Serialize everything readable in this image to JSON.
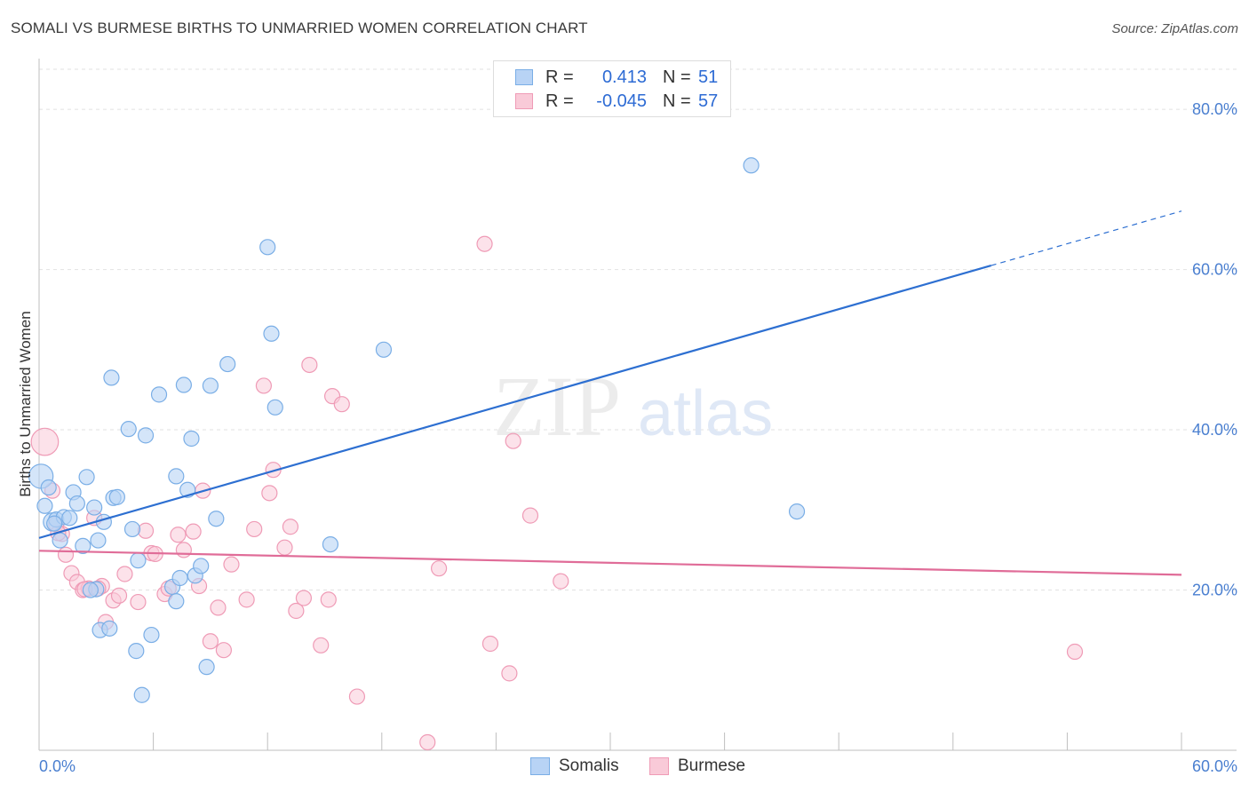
{
  "title": "SOMALI VS BURMESE BIRTHS TO UNMARRIED WOMEN CORRELATION CHART",
  "source": "Source: ZipAtlas.com",
  "watermark": {
    "zip": "ZIP",
    "atlas": "atlas"
  },
  "colors": {
    "somali_fill": "#b8d3f5",
    "somali_stroke": "#7aaee6",
    "somali_line": "#2d6fd1",
    "burmese_fill": "#f9cad8",
    "burmese_stroke": "#ef9bb6",
    "burmese_line": "#e06c98",
    "tick_text": "#4a7fd0"
  },
  "legend": {
    "rows": [
      {
        "r_label": "R =",
        "r_value": "0.413",
        "n_label": "N =",
        "n_value": "51"
      },
      {
        "r_label": "R =",
        "r_value": "-0.045",
        "n_label": "N =",
        "n_value": "57"
      }
    ]
  },
  "bottom_legend": {
    "somali": "Somalis",
    "burmese": "Burmese"
  },
  "chart_data": {
    "type": "scatter",
    "title": "SOMALI VS BURMESE BIRTHS TO UNMARRIED WOMEN CORRELATION CHART",
    "ylabel": "Births to Unmarried Women",
    "xlabel": "",
    "xlim": [
      0,
      60
    ],
    "ylim": [
      0,
      85
    ],
    "x_tick_labels": [
      "0.0%",
      "60.0%"
    ],
    "y_ticks": [
      20,
      40,
      60,
      80
    ],
    "y_tick_labels": [
      "20.0%",
      "40.0%",
      "60.0%",
      "80.0%"
    ],
    "grid": true,
    "series": [
      {
        "name": "Somalis",
        "trend": {
          "x0": 0,
          "y0": 26.5,
          "x1": 50,
          "y1": 60.5,
          "dashed_to_x": 60,
          "dashed_to_y": 67.3
        },
        "points": [
          [
            0.1,
            34.2,
            1.6
          ],
          [
            0.3,
            30.5,
            1
          ],
          [
            0.5,
            32.8,
            1
          ],
          [
            0.7,
            28.5,
            1.2
          ],
          [
            0.9,
            28.8,
            1
          ],
          [
            1.1,
            26.2,
            1
          ],
          [
            1.3,
            29.1,
            1
          ],
          [
            1.6,
            29.0,
            1
          ],
          [
            1.8,
            32.2,
            1
          ],
          [
            2.0,
            30.8,
            1
          ],
          [
            2.3,
            25.5,
            1
          ],
          [
            2.5,
            34.1,
            1
          ],
          [
            2.9,
            30.3,
            1
          ],
          [
            3.1,
            26.2,
            1
          ],
          [
            3.4,
            28.5,
            1
          ],
          [
            3.8,
            46.5,
            1
          ],
          [
            3.9,
            31.5,
            1
          ],
          [
            4.1,
            31.6,
            1
          ],
          [
            4.7,
            40.1,
            1
          ],
          [
            4.9,
            27.6,
            1
          ],
          [
            5.2,
            23.7,
            1
          ],
          [
            5.1,
            12.4,
            1
          ],
          [
            5.4,
            6.9,
            1
          ],
          [
            5.6,
            39.3,
            1
          ],
          [
            5.9,
            14.4,
            1
          ],
          [
            6.3,
            44.4,
            1
          ],
          [
            7.0,
            20.4,
            1
          ],
          [
            7.2,
            18.6,
            1
          ],
          [
            7.2,
            34.2,
            1
          ],
          [
            7.4,
            21.5,
            1
          ],
          [
            7.6,
            45.6,
            1
          ],
          [
            7.8,
            32.5,
            1
          ],
          [
            8.0,
            38.9,
            1
          ],
          [
            8.2,
            21.8,
            1
          ],
          [
            8.5,
            23.0,
            1
          ],
          [
            8.8,
            10.4,
            1
          ],
          [
            9.0,
            45.5,
            1
          ],
          [
            9.3,
            28.9,
            1
          ],
          [
            9.9,
            48.2,
            1
          ],
          [
            3.0,
            20.1,
            1
          ],
          [
            3.2,
            15.0,
            1
          ],
          [
            3.7,
            15.2,
            1
          ],
          [
            12.0,
            62.8,
            1
          ],
          [
            12.2,
            52.0,
            1
          ],
          [
            12.4,
            42.8,
            1
          ],
          [
            15.3,
            25.7,
            1
          ],
          [
            18.1,
            50.0,
            1
          ],
          [
            37.4,
            73.0,
            1
          ],
          [
            39.8,
            29.8,
            1
          ],
          [
            2.7,
            20.0,
            1
          ],
          [
            0.8,
            28.3,
            1
          ]
        ]
      },
      {
        "name": "Burmese",
        "trend": {
          "x0": 0,
          "y0": 24.9,
          "x1": 60,
          "y1": 21.9
        },
        "points": [
          [
            0.3,
            38.5,
            1.8
          ],
          [
            0.7,
            32.4,
            1
          ],
          [
            0.9,
            28.2,
            1
          ],
          [
            1.2,
            27.0,
            1
          ],
          [
            1.4,
            24.4,
            1
          ],
          [
            1.7,
            22.1,
            1
          ],
          [
            2.0,
            21.0,
            1
          ],
          [
            2.3,
            20.0,
            1
          ],
          [
            2.6,
            20.2,
            1
          ],
          [
            2.9,
            29.0,
            1
          ],
          [
            3.3,
            20.5,
            1
          ],
          [
            3.5,
            16.0,
            1
          ],
          [
            3.9,
            18.7,
            1
          ],
          [
            4.2,
            19.3,
            1
          ],
          [
            4.5,
            22.0,
            1
          ],
          [
            5.2,
            18.5,
            1
          ],
          [
            5.6,
            27.4,
            1
          ],
          [
            5.9,
            24.6,
            1
          ],
          [
            6.1,
            24.5,
            1
          ],
          [
            6.6,
            19.5,
            1
          ],
          [
            6.8,
            20.2,
            1
          ],
          [
            7.3,
            26.9,
            1
          ],
          [
            7.6,
            25.0,
            1
          ],
          [
            8.1,
            27.3,
            1
          ],
          [
            8.4,
            20.5,
            1
          ],
          [
            8.6,
            32.4,
            1
          ],
          [
            9.0,
            13.6,
            1
          ],
          [
            9.4,
            17.8,
            1
          ],
          [
            9.7,
            12.5,
            1
          ],
          [
            10.1,
            23.2,
            1
          ],
          [
            10.9,
            18.8,
            1
          ],
          [
            11.3,
            27.6,
            1
          ],
          [
            11.8,
            45.5,
            1
          ],
          [
            12.1,
            32.1,
            1
          ],
          [
            12.3,
            35.0,
            1
          ],
          [
            12.9,
            25.3,
            1
          ],
          [
            13.2,
            27.9,
            1
          ],
          [
            13.5,
            17.4,
            1
          ],
          [
            13.9,
            19.0,
            1
          ],
          [
            14.2,
            48.1,
            1
          ],
          [
            14.8,
            13.1,
            1
          ],
          [
            15.2,
            18.8,
            1
          ],
          [
            15.4,
            44.2,
            1
          ],
          [
            15.9,
            43.2,
            1
          ],
          [
            16.7,
            6.7,
            1
          ],
          [
            20.4,
            1.0,
            1
          ],
          [
            21.0,
            22.7,
            1
          ],
          [
            23.4,
            63.2,
            1
          ],
          [
            23.7,
            13.3,
            1
          ],
          [
            24.7,
            9.6,
            1
          ],
          [
            24.9,
            38.6,
            1
          ],
          [
            25.8,
            29.3,
            1
          ],
          [
            27.4,
            21.1,
            1
          ],
          [
            54.4,
            12.3,
            1
          ],
          [
            3.1,
            20.2,
            1
          ],
          [
            2.4,
            20.1,
            1
          ],
          [
            1.0,
            27.1,
            1
          ]
        ]
      }
    ]
  }
}
